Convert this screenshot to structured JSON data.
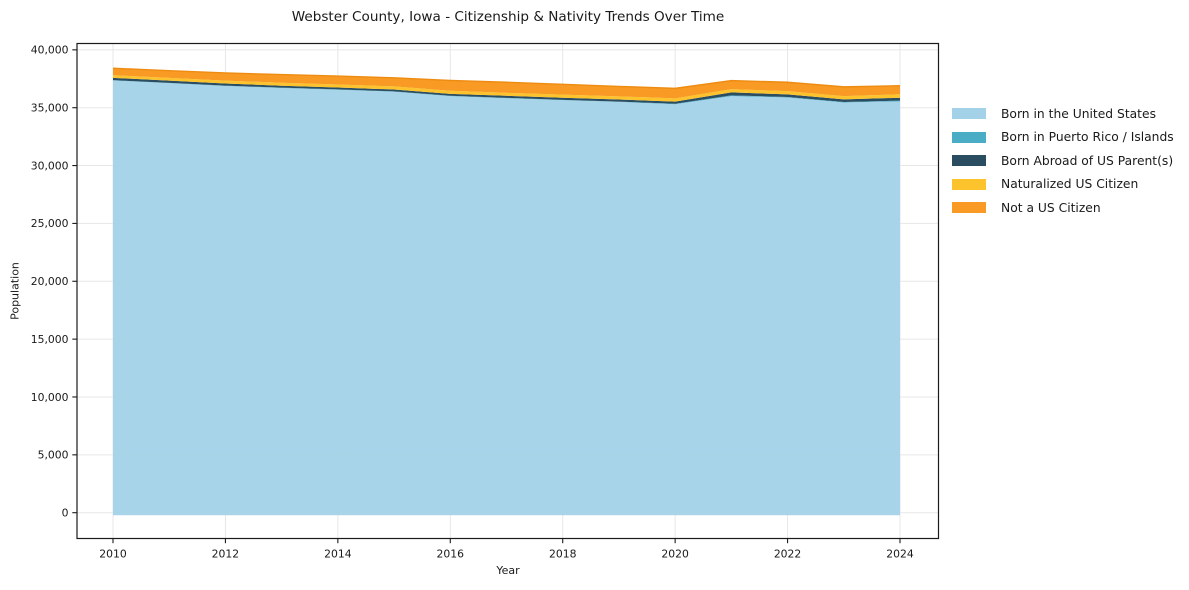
{
  "title": "Webster County, Iowa - Citizenship & Nativity Trends Over Time",
  "chart_data": {
    "type": "area",
    "stacked": true,
    "title": "Webster County, Iowa - Citizenship & Nativity Trends Over Time",
    "xlabel": "Year",
    "ylabel": "Population",
    "x": [
      2010,
      2011,
      2012,
      2013,
      2014,
      2015,
      2016,
      2017,
      2018,
      2019,
      2020,
      2021,
      2022,
      2023,
      2024
    ],
    "series": [
      {
        "name": "Born in the United States",
        "color": "#a3d2e8",
        "values": [
          37350,
          37120,
          36880,
          36700,
          36550,
          36380,
          36000,
          35820,
          35650,
          35500,
          35300,
          36000,
          35880,
          35450,
          35550
        ]
      },
      {
        "name": "Born in Puerto Rico / Islands",
        "color": "#4bacc6",
        "values": [
          30,
          30,
          30,
          30,
          30,
          30,
          30,
          30,
          30,
          30,
          40,
          60,
          50,
          40,
          60
        ]
      },
      {
        "name": "Born Abroad of US Parent(s)",
        "color": "#2b4d61",
        "values": [
          200,
          190,
          180,
          170,
          170,
          160,
          170,
          180,
          180,
          180,
          190,
          260,
          220,
          230,
          250
        ]
      },
      {
        "name": "Naturalized US Citizen",
        "color": "#fcc32d",
        "values": [
          230,
          240,
          250,
          260,
          260,
          270,
          260,
          260,
          270,
          270,
          280,
          280,
          280,
          280,
          300
        ]
      },
      {
        "name": "Not a US Citizen",
        "color": "#f89a23",
        "values": [
          600,
          620,
          660,
          700,
          720,
          740,
          900,
          910,
          890,
          860,
          860,
          740,
          770,
          800,
          740
        ]
      }
    ],
    "xticks": [
      2010,
      2012,
      2014,
      2016,
      2018,
      2020,
      2022,
      2024
    ],
    "xticklabels": [
      "2010",
      "2012",
      "2014",
      "2016",
      "2018",
      "2020",
      "2022",
      "2024"
    ],
    "yticks": [
      0,
      5000,
      10000,
      15000,
      20000,
      25000,
      30000,
      35000,
      40000
    ],
    "yticklabels": [
      "0",
      "5,000",
      "10,000",
      "15,000",
      "20,000",
      "25,000",
      "30,000",
      "35,000",
      "40,000"
    ],
    "ylim": [
      0,
      40000
    ],
    "xlim": [
      2010,
      2024
    ],
    "grid": true,
    "legend_position": "right",
    "colors": {
      "spine": "#1a1a1a",
      "grid": "#e7e7e7",
      "text": "#1a1a1a",
      "background": "#ffffff",
      "area_top_edge": "#ee8c12"
    }
  }
}
